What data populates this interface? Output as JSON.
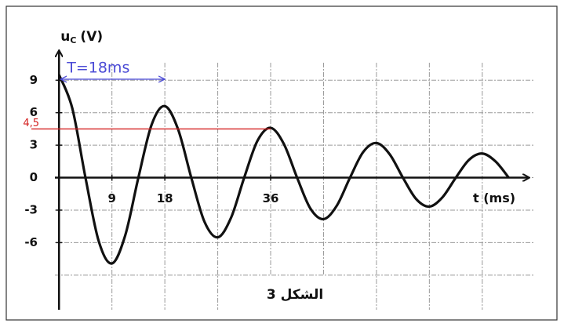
{
  "chart_data": {
    "type": "line",
    "ylabel": {
      "symbol": "u",
      "subscript": "C",
      "unit": "(V)"
    },
    "xlabel": "t (ms)",
    "x": [
      0,
      2.25,
      4.5,
      6.75,
      9,
      11.25,
      13.5,
      15.75,
      18,
      20.25,
      22.5,
      24.75,
      27,
      29.25,
      31.5,
      33.75,
      36,
      38.25,
      40.5,
      42.75,
      45,
      47.25,
      49.5,
      51.75,
      54,
      56.25,
      58.5,
      60.75,
      63,
      65.25,
      67.5,
      69.75,
      72,
      74.25,
      76.5
    ],
    "series": [
      {
        "color": "#111111",
        "values": [
          9.5,
          6.42,
          0,
          -5.86,
          -7.92,
          -5.35,
          0,
          4.89,
          6.61,
          4.47,
          0,
          -4.08,
          -5.51,
          -3.72,
          0,
          3.4,
          4.6,
          3.11,
          0,
          -2.84,
          -3.83,
          -2.59,
          0,
          2.37,
          3.2,
          2.16,
          0,
          -1.97,
          -2.67,
          -1.8,
          0,
          1.65,
          2.23,
          1.5,
          0
        ]
      }
    ],
    "xlim": [
      -0.7,
      80.7
    ],
    "ylim": [
      -12.2,
      11.7
    ],
    "xticks": [
      9,
      18,
      36
    ],
    "yticks": [
      9,
      6,
      3,
      0,
      -3,
      -6
    ],
    "xgrid": [
      9,
      18,
      27,
      36,
      45,
      54,
      63,
      72
    ],
    "ygrid": [
      9,
      6,
      3,
      0,
      -3,
      -6,
      -9
    ],
    "grid": true,
    "reference": {
      "value": 4.5,
      "label": "4,5",
      "end": 36,
      "color": "#d42020"
    },
    "period_annotation": {
      "text": "T=18ms",
      "start": 0,
      "end": 18,
      "color": "#4b4bd6"
    },
    "caption": "الشكل 3"
  }
}
